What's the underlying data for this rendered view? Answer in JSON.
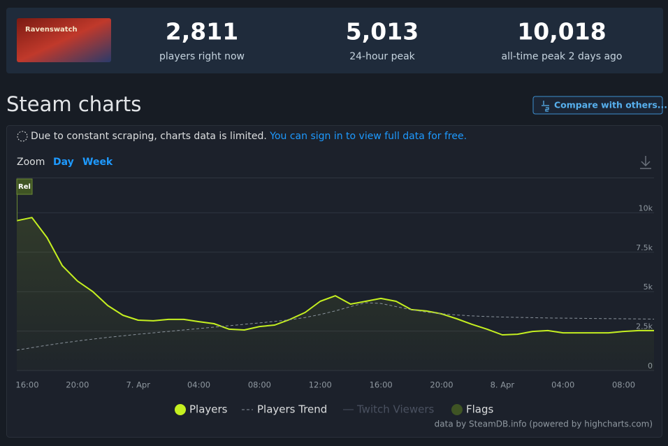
{
  "game": {
    "logo_text": "Ravenswatch"
  },
  "stats": [
    {
      "value": "2,811",
      "label": "players right now"
    },
    {
      "value": "5,013",
      "label": "24-hour peak"
    },
    {
      "value": "10,018",
      "label": "all-time peak 2 days ago"
    }
  ],
  "heading": "Steam charts",
  "compare_button": "Compare with others...",
  "notice": {
    "text": "Due to constant scraping, charts data is limited.",
    "link": "You can sign in to view full data for free."
  },
  "zoom": {
    "label": "Zoom",
    "options": [
      "Day",
      "Week"
    ]
  },
  "credit": "data by SteamDB.info (powered by highcharts.com)",
  "chart_data": {
    "type": "line",
    "categories": [
      "16:00",
      null,
      null,
      null,
      "20:00",
      null,
      null,
      null,
      "7. Apr",
      null,
      null,
      null,
      "04:00",
      null,
      null,
      null,
      "08:00",
      null,
      null,
      null,
      "12:00",
      null,
      null,
      null,
      "16:00",
      null,
      null,
      null,
      "20:00",
      null,
      null,
      null,
      "8. Apr",
      null,
      null,
      null,
      "04:00",
      null,
      null,
      null,
      "08:00",
      null,
      null
    ],
    "series": [
      {
        "name": "Players",
        "color": "#c5f020",
        "area": true,
        "values": [
          9500,
          9700,
          8420,
          6650,
          5670,
          5010,
          4120,
          3500,
          3190,
          3150,
          3240,
          3240,
          3100,
          2970,
          2620,
          2570,
          2790,
          2880,
          3240,
          3680,
          4390,
          4740,
          4210,
          4390,
          4570,
          4390,
          3860,
          3770,
          3590,
          3280,
          2930,
          2620,
          2260,
          2300,
          2480,
          2530,
          2390,
          2390,
          2390,
          2390,
          2480,
          2530,
          2530
        ]
      },
      {
        "name": "Players Trend",
        "color": "#8a939c",
        "dashed": true,
        "values": [
          1290,
          1450,
          1600,
          1740,
          1870,
          1990,
          2100,
          2200,
          2300,
          2390,
          2480,
          2570,
          2660,
          2750,
          2840,
          2930,
          3020,
          3110,
          3220,
          3360,
          3550,
          3780,
          4050,
          4300,
          4250,
          4050,
          3850,
          3700,
          3600,
          3520,
          3460,
          3420,
          3390,
          3370,
          3350,
          3330,
          3320,
          3310,
          3300,
          3290,
          3280,
          3270,
          3260
        ]
      }
    ],
    "hidden_series": [
      {
        "name": "Twitch Viewers",
        "color": "#4a5160"
      }
    ],
    "flags": {
      "name": "Flags",
      "color": "#3f5424",
      "items": [
        {
          "title": "Rel",
          "index": 0
        }
      ]
    },
    "ylim": [
      0,
      12500
    ],
    "yticks": [
      0,
      {
        "value": 2500,
        "label": "2.5k"
      },
      {
        "value": 5000,
        "label": "5k"
      },
      {
        "value": 7500,
        "label": "7.5k"
      },
      {
        "value": 10000,
        "label": "10k"
      }
    ],
    "grid": true
  }
}
